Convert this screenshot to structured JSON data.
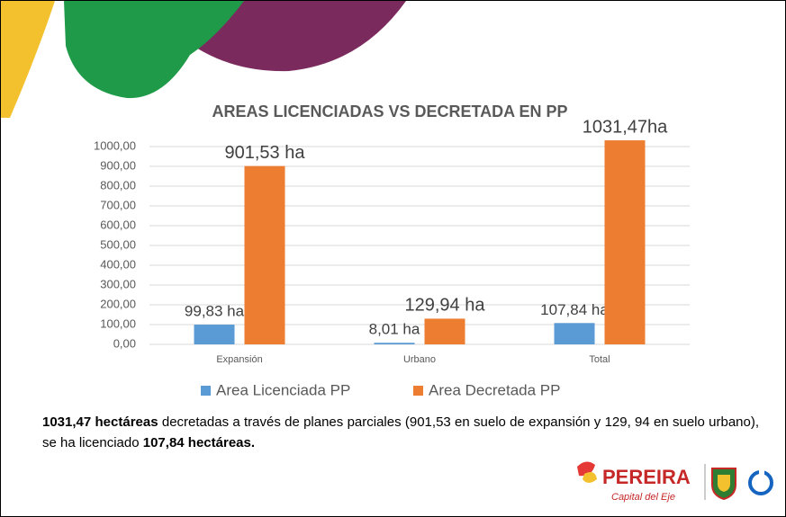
{
  "chart_data": {
    "type": "bar",
    "title": "AREAS LICENCIADAS VS DECRETADA EN PP",
    "categories": [
      "Expansión",
      "Urbano",
      "Total"
    ],
    "series": [
      {
        "name": "Area Licenciada PP",
        "color": "#5b9bd5",
        "values": [
          99.83,
          8.01,
          107.84
        ],
        "value_labels": [
          "99,83 ha",
          "8,01 ha",
          "107,84 ha"
        ]
      },
      {
        "name": "Area Decretada PP",
        "color": "#ed7d31",
        "values": [
          901.53,
          129.94,
          1031.47
        ],
        "value_labels": [
          "901,53 ha",
          "129,94 ha",
          "1031,47ha"
        ]
      }
    ],
    "ylim": [
      0,
      1000
    ],
    "yticks": [
      {
        "value": 0,
        "label": "0,00"
      },
      {
        "value": 100,
        "label": "100,00"
      },
      {
        "value": 200,
        "label": "200,00"
      },
      {
        "value": 300,
        "label": "300,00"
      },
      {
        "value": 400,
        "label": "400,00"
      },
      {
        "value": 500,
        "label": "500,00"
      },
      {
        "value": 600,
        "label": "600,00"
      },
      {
        "value": 700,
        "label": "700,00"
      },
      {
        "value": 800,
        "label": "800,00"
      },
      {
        "value": 900,
        "label": "900,00"
      },
      {
        "value": 1000,
        "label": "1000,00"
      }
    ],
    "grid": true,
    "legend": "bottom"
  },
  "text": {
    "bold1": "1031,47 hectáreas",
    "body": " decretadas a través de planes parciales (901,53   en suelo de expansión y   129, 94 en suelo urbano), se ha licenciado ",
    "bold2": "107,84 hectáreas."
  },
  "logo": {
    "name": "PEREIRA",
    "tagline": "Capital del Eje"
  }
}
